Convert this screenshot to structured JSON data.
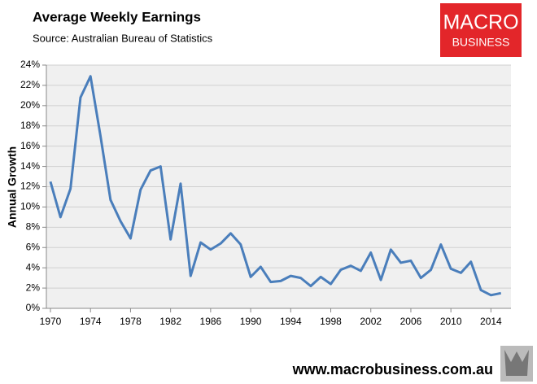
{
  "chart_data": {
    "type": "line",
    "title": "Average Weekly Earnings",
    "subtitle": "Source: Australian Bureau of Statistics",
    "y_label": "Annual Growth",
    "logo": {
      "line1": "MACRO",
      "line2": "BUSINESS"
    },
    "footer": "www.macrobusiness.com.au",
    "x": [
      1970,
      1971,
      1972,
      1973,
      1974,
      1975,
      1976,
      1977,
      1978,
      1979,
      1980,
      1981,
      1982,
      1983,
      1984,
      1985,
      1986,
      1987,
      1988,
      1989,
      1990,
      1991,
      1992,
      1993,
      1994,
      1995,
      1996,
      1997,
      1998,
      1999,
      2000,
      2001,
      2002,
      2003,
      2004,
      2005,
      2006,
      2007,
      2008,
      2009,
      2010,
      2011,
      2012,
      2013,
      2014,
      2015
    ],
    "series": [
      {
        "name": "Annual Growth",
        "color": "#4a7ebb",
        "values": [
          12.5,
          9.0,
          11.8,
          20.8,
          22.9,
          17.0,
          10.7,
          8.6,
          6.9,
          11.7,
          13.6,
          14.0,
          6.8,
          12.3,
          3.2,
          6.5,
          5.8,
          6.4,
          7.4,
          6.3,
          3.1,
          4.1,
          2.6,
          2.7,
          3.2,
          3.0,
          2.2,
          3.1,
          2.4,
          3.8,
          4.2,
          3.7,
          5.5,
          2.8,
          5.8,
          4.5,
          4.7,
          3.0,
          3.8,
          6.3,
          3.9,
          3.5,
          4.6,
          1.8,
          1.3,
          1.5
        ]
      }
    ],
    "xlim": [
      1970,
      2016
    ],
    "xticks": [
      1970,
      1974,
      1978,
      1982,
      1986,
      1990,
      1994,
      1998,
      2002,
      2006,
      2010,
      2014
    ],
    "ylim": [
      0,
      24
    ],
    "yticks": [
      {
        "value": 0,
        "label": "0%"
      },
      {
        "value": 2,
        "label": "2%"
      },
      {
        "value": 4,
        "label": "4%"
      },
      {
        "value": 6,
        "label": "6%"
      },
      {
        "value": 8,
        "label": "8%"
      },
      {
        "value": 10,
        "label": "10%"
      },
      {
        "value": 12,
        "label": "12%"
      },
      {
        "value": 14,
        "label": "14%"
      },
      {
        "value": 16,
        "label": "16%"
      },
      {
        "value": 18,
        "label": "18%"
      },
      {
        "value": 20,
        "label": "20%"
      },
      {
        "value": 22,
        "label": "22%"
      },
      {
        "value": 24,
        "label": "24%"
      }
    ],
    "grid": true
  }
}
